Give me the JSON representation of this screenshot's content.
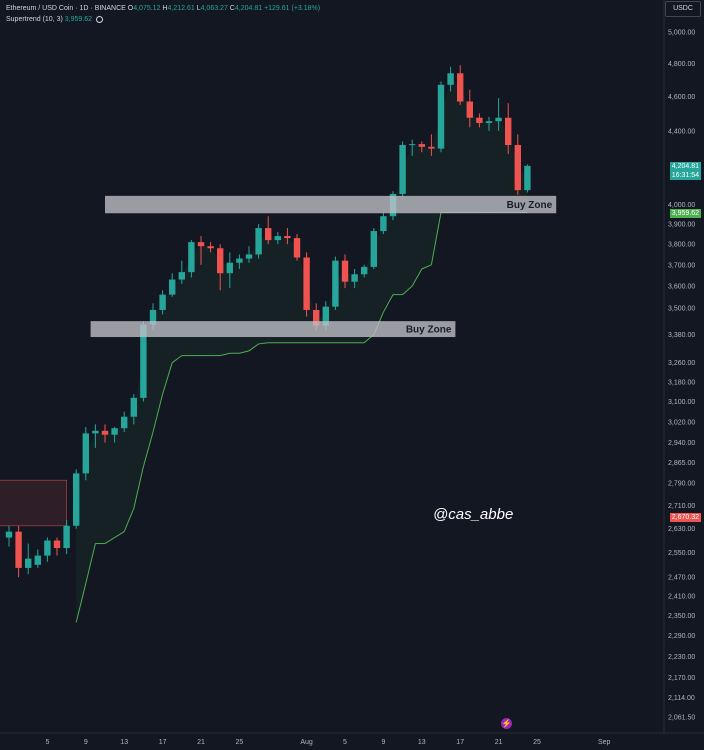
{
  "legend": {
    "symbol": "Ethereum / USD Coin · 1D · BINANCE",
    "open_label": "O",
    "open": "4,075.12",
    "high_label": "H",
    "high": "4,212.61",
    "low_label": "L",
    "low": "4,063.27",
    "close_label": "C",
    "close": "4,204.81",
    "change": "+129.61 (+3.18%)",
    "indicator": "Supertrend (10, 3)",
    "indicator_value": "3,959.62"
  },
  "currency_button": "USDC",
  "price_tag": {
    "price": "4,204.81",
    "countdown": "16:31:54"
  },
  "supertrend_tag": "3,959.62",
  "alert_tag": "2,670.32",
  "watermark": "@cas_abbe",
  "flash_icon": "lightning-icon",
  "colors": {
    "background": "#131722",
    "up": "#26a69a",
    "down": "#ef5350",
    "zone": "#c0c0c8",
    "supertrend": "#4caf50"
  },
  "chart_data": {
    "type": "candlestick",
    "title": "Ethereum / USD Coin · 1D · BINANCE",
    "x_ticks": [
      {
        "label": "5",
        "day": 5
      },
      {
        "label": "9",
        "day": 9
      },
      {
        "label": "13",
        "day": 13
      },
      {
        "label": "17",
        "day": 17
      },
      {
        "label": "21",
        "day": 21
      },
      {
        "label": "25",
        "day": 25
      },
      {
        "label": "Aug",
        "day": 32
      },
      {
        "label": "5",
        "day": 36
      },
      {
        "label": "9",
        "day": 40
      },
      {
        "label": "13",
        "day": 44
      },
      {
        "label": "17",
        "day": 48
      },
      {
        "label": "21",
        "day": 52
      },
      {
        "label": "25",
        "day": 56
      },
      {
        "label": "Sep",
        "day": 63
      }
    ],
    "y_ticks": [
      "5,000.00",
      "4,800.00",
      "4,600.00",
      "4,400.00",
      "4,000.00",
      "3,900.00",
      "3,800.00",
      "3,700.00",
      "3,600.00",
      "3,500.00",
      "3,380.00",
      "3,260.00",
      "3,180.00",
      "3,100.00",
      "3,020.00",
      "2,940.00",
      "2,865.00",
      "2,790.00",
      "2,710.00",
      "2,630.00",
      "2,550.00",
      "2,470.00",
      "2,410.00",
      "2,350.00",
      "2,290.00",
      "2,230.00",
      "2,170.00",
      "2,114.00",
      "2,061.50"
    ],
    "y_scale": "log",
    "candles": [
      {
        "day": 1,
        "o": 2600,
        "h": 2640,
        "l": 2570,
        "c": 2620
      },
      {
        "day": 2,
        "o": 2620,
        "h": 2640,
        "l": 2470,
        "c": 2500
      },
      {
        "day": 3,
        "o": 2500,
        "h": 2580,
        "l": 2480,
        "c": 2530
      },
      {
        "day": 4,
        "o": 2510,
        "h": 2560,
        "l": 2500,
        "c": 2540
      },
      {
        "day": 5,
        "o": 2540,
        "h": 2600,
        "l": 2520,
        "c": 2590
      },
      {
        "day": 6,
        "o": 2590,
        "h": 2600,
        "l": 2540,
        "c": 2565
      },
      {
        "day": 7,
        "o": 2565,
        "h": 2660,
        "l": 2545,
        "c": 2640
      },
      {
        "day": 8,
        "o": 2640,
        "h": 2840,
        "l": 2630,
        "c": 2825
      },
      {
        "day": 9,
        "o": 2825,
        "h": 3000,
        "l": 2800,
        "c": 2975
      },
      {
        "day": 10,
        "o": 2975,
        "h": 3010,
        "l": 2920,
        "c": 2985
      },
      {
        "day": 11,
        "o": 2985,
        "h": 3010,
        "l": 2940,
        "c": 2970
      },
      {
        "day": 12,
        "o": 2970,
        "h": 3000,
        "l": 2940,
        "c": 2995
      },
      {
        "day": 13,
        "o": 2995,
        "h": 3060,
        "l": 2980,
        "c": 3040
      },
      {
        "day": 14,
        "o": 3040,
        "h": 3130,
        "l": 3010,
        "c": 3115
      },
      {
        "day": 15,
        "o": 3115,
        "h": 3440,
        "l": 3100,
        "c": 3425
      },
      {
        "day": 16,
        "o": 3425,
        "h": 3520,
        "l": 3400,
        "c": 3490
      },
      {
        "day": 17,
        "o": 3490,
        "h": 3580,
        "l": 3470,
        "c": 3560
      },
      {
        "day": 18,
        "o": 3560,
        "h": 3660,
        "l": 3550,
        "c": 3630
      },
      {
        "day": 19,
        "o": 3630,
        "h": 3720,
        "l": 3610,
        "c": 3665
      },
      {
        "day": 20,
        "o": 3665,
        "h": 3820,
        "l": 3640,
        "c": 3810
      },
      {
        "day": 21,
        "o": 3810,
        "h": 3840,
        "l": 3700,
        "c": 3790
      },
      {
        "day": 22,
        "o": 3790,
        "h": 3810,
        "l": 3760,
        "c": 3780
      },
      {
        "day": 23,
        "o": 3780,
        "h": 3800,
        "l": 3580,
        "c": 3660
      },
      {
        "day": 24,
        "o": 3660,
        "h": 3760,
        "l": 3590,
        "c": 3710
      },
      {
        "day": 25,
        "o": 3710,
        "h": 3750,
        "l": 3680,
        "c": 3730
      },
      {
        "day": 26,
        "o": 3730,
        "h": 3790,
        "l": 3710,
        "c": 3750
      },
      {
        "day": 27,
        "o": 3750,
        "h": 3900,
        "l": 3730,
        "c": 3880
      },
      {
        "day": 28,
        "o": 3880,
        "h": 3940,
        "l": 3800,
        "c": 3820
      },
      {
        "day": 29,
        "o": 3820,
        "h": 3860,
        "l": 3800,
        "c": 3840
      },
      {
        "day": 30,
        "o": 3840,
        "h": 3880,
        "l": 3800,
        "c": 3830
      },
      {
        "day": 31,
        "o": 3830,
        "h": 3850,
        "l": 3720,
        "c": 3735
      },
      {
        "day": 32,
        "o": 3735,
        "h": 3760,
        "l": 3460,
        "c": 3490
      },
      {
        "day": 33,
        "o": 3490,
        "h": 3520,
        "l": 3400,
        "c": 3420
      },
      {
        "day": 34,
        "o": 3420,
        "h": 3530,
        "l": 3400,
        "c": 3505
      },
      {
        "day": 35,
        "o": 3505,
        "h": 3740,
        "l": 3490,
        "c": 3720
      },
      {
        "day": 36,
        "o": 3720,
        "h": 3750,
        "l": 3590,
        "c": 3620
      },
      {
        "day": 37,
        "o": 3620,
        "h": 3680,
        "l": 3590,
        "c": 3655
      },
      {
        "day": 38,
        "o": 3655,
        "h": 3700,
        "l": 3640,
        "c": 3690
      },
      {
        "day": 39,
        "o": 3690,
        "h": 3880,
        "l": 3680,
        "c": 3865
      },
      {
        "day": 40,
        "o": 3865,
        "h": 3960,
        "l": 3850,
        "c": 3940
      },
      {
        "day": 41,
        "o": 3940,
        "h": 4070,
        "l": 3920,
        "c": 4055
      },
      {
        "day": 42,
        "o": 4055,
        "h": 4340,
        "l": 4040,
        "c": 4320
      },
      {
        "day": 43,
        "o": 4320,
        "h": 4350,
        "l": 4260,
        "c": 4325
      },
      {
        "day": 44,
        "o": 4325,
        "h": 4340,
        "l": 4280,
        "c": 4310
      },
      {
        "day": 45,
        "o": 4310,
        "h": 4380,
        "l": 4260,
        "c": 4300
      },
      {
        "day": 46,
        "o": 4300,
        "h": 4690,
        "l": 4280,
        "c": 4670
      },
      {
        "day": 47,
        "o": 4670,
        "h": 4780,
        "l": 4630,
        "c": 4740
      },
      {
        "day": 48,
        "o": 4740,
        "h": 4790,
        "l": 4550,
        "c": 4570
      },
      {
        "day": 49,
        "o": 4570,
        "h": 4640,
        "l": 4420,
        "c": 4475
      },
      {
        "day": 50,
        "o": 4475,
        "h": 4500,
        "l": 4420,
        "c": 4445
      },
      {
        "day": 51,
        "o": 4445,
        "h": 4480,
        "l": 4400,
        "c": 4455
      },
      {
        "day": 52,
        "o": 4455,
        "h": 4590,
        "l": 4400,
        "c": 4475
      },
      {
        "day": 53,
        "o": 4475,
        "h": 4560,
        "l": 4270,
        "c": 4320
      },
      {
        "day": 54,
        "o": 4320,
        "h": 4380,
        "l": 4050,
        "c": 4075
      },
      {
        "day": 55,
        "o": 4075,
        "h": 4213,
        "l": 4063,
        "c": 4205
      }
    ],
    "supertrend": [
      {
        "day": 8,
        "v": 2330
      },
      {
        "day": 9,
        "v": 2450
      },
      {
        "day": 10,
        "v": 2580
      },
      {
        "day": 11,
        "v": 2580
      },
      {
        "day": 12,
        "v": 2600
      },
      {
        "day": 13,
        "v": 2620
      },
      {
        "day": 14,
        "v": 2700
      },
      {
        "day": 15,
        "v": 2850
      },
      {
        "day": 16,
        "v": 2980
      },
      {
        "day": 17,
        "v": 3130
      },
      {
        "day": 18,
        "v": 3260
      },
      {
        "day": 19,
        "v": 3290
      },
      {
        "day": 20,
        "v": 3290
      },
      {
        "day": 21,
        "v": 3290
      },
      {
        "day": 22,
        "v": 3290
      },
      {
        "day": 23,
        "v": 3290
      },
      {
        "day": 24,
        "v": 3300
      },
      {
        "day": 25,
        "v": 3300
      },
      {
        "day": 26,
        "v": 3310
      },
      {
        "day": 27,
        "v": 3340
      },
      {
        "day": 28,
        "v": 3345
      },
      {
        "day": 29,
        "v": 3345
      },
      {
        "day": 30,
        "v": 3345
      },
      {
        "day": 31,
        "v": 3345
      },
      {
        "day": 32,
        "v": 3345
      },
      {
        "day": 33,
        "v": 3345
      },
      {
        "day": 34,
        "v": 3345
      },
      {
        "day": 35,
        "v": 3345
      },
      {
        "day": 36,
        "v": 3345
      },
      {
        "day": 37,
        "v": 3345
      },
      {
        "day": 38,
        "v": 3345
      },
      {
        "day": 39,
        "v": 3380
      },
      {
        "day": 40,
        "v": 3480
      },
      {
        "day": 41,
        "v": 3560
      },
      {
        "day": 42,
        "v": 3560
      },
      {
        "day": 43,
        "v": 3600
      },
      {
        "day": 44,
        "v": 3680
      },
      {
        "day": 45,
        "v": 3700
      },
      {
        "day": 46,
        "v": 3959
      },
      {
        "day": 47,
        "v": 3959
      },
      {
        "day": 48,
        "v": 3959
      },
      {
        "day": 49,
        "v": 3959
      },
      {
        "day": 50,
        "v": 3959
      },
      {
        "day": 51,
        "v": 3959
      },
      {
        "day": 52,
        "v": 3959
      },
      {
        "day": 53,
        "v": 3959
      },
      {
        "day": 54,
        "v": 3959
      },
      {
        "day": 55,
        "v": 3959
      }
    ],
    "zones": [
      {
        "label": "Buy Zone",
        "from_day": 11,
        "to_day": 58,
        "low": 3955,
        "high": 4045
      },
      {
        "label": "Buy Zone",
        "from_day": 9.5,
        "to_day": 47.5,
        "low": 3370,
        "high": 3440
      }
    ],
    "resistance_box": {
      "from_day": 0,
      "to_day": 7,
      "low": 2640,
      "high": 2800
    }
  }
}
